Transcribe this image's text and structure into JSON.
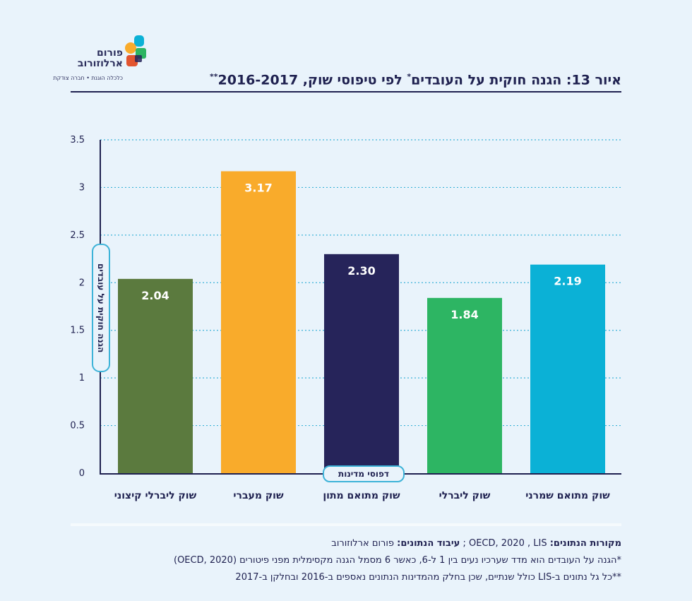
{
  "logo": {
    "line1": "פורום",
    "line2": "ארלוזורוב",
    "tagline": "כלכלה הוגנת • חברה צודקת"
  },
  "title": {
    "main": "איור 13: הגנה חוקית על העובדים",
    "sup1": "*",
    "rest": " לפי טיפוסי שוק, 2016-2017",
    "sup2": "**"
  },
  "chart_data": {
    "type": "bar",
    "categories": [
      "שוק מתואם שמרני",
      "שוק ליברלי",
      "שוק מתואם מתון",
      "שוק מעברי",
      "שוק ליברלי קיצוני"
    ],
    "values": [
      2.19,
      1.84,
      2.3,
      3.17,
      2.04
    ],
    "value_labels": [
      "2.19",
      "1.84",
      "2.30",
      "3.17",
      "2.04"
    ],
    "colors": [
      "#0bb1d6",
      "#2db563",
      "#26245a",
      "#f9ab2b",
      "#5b7a3e"
    ],
    "ylim": [
      0,
      3.5
    ],
    "yticks": [
      0,
      0.5,
      1,
      1.5,
      2,
      2.5,
      3,
      3.5
    ],
    "ytick_labels": [
      "0",
      "0.5",
      "1",
      "1.5",
      "2",
      "2.5",
      "3",
      "3.5"
    ],
    "ylabel": "הגנה חוקית על עובדים",
    "xlabel": "דפוסי מדינות",
    "grid": true,
    "grid_color": "#3db3d8"
  },
  "footer": {
    "sources_label": "מקורות הנתונים:",
    "sources_value": " OECD, 2020 , LIS ; ",
    "processing_label": "עיבוד הנתונים:",
    "processing_value": " פורום ארלוזורוב",
    "note1": "*הגנה על העובדים הוא מדד שערכיו נעים בין 1 ל-6, כאשר 6 מסמל הגנה מקסימלית מפני פיטורים (OECD, 2020)",
    "note2": "**כל גל נתונים ב-LIS כולל שנתיים, שכן בחלק מהמדינות הנתונים נאספים ב-2016 ובחלקן ב-2017"
  }
}
